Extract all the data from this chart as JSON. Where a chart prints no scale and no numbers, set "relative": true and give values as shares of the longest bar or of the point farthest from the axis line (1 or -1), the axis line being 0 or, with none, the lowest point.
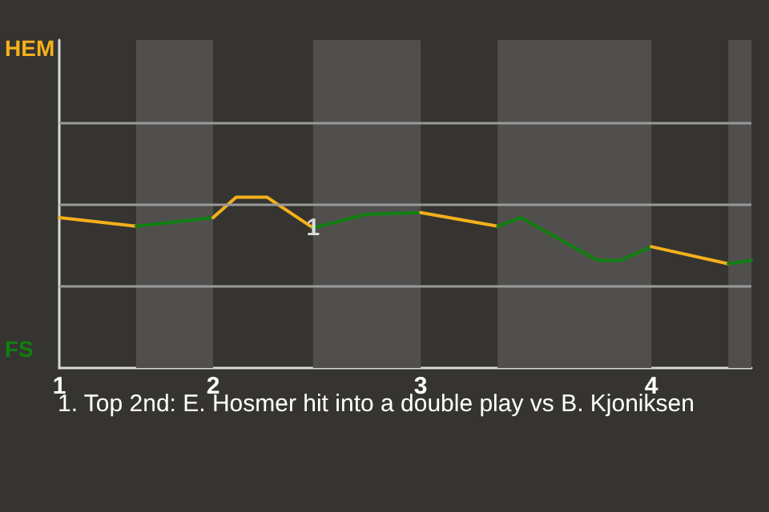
{
  "chart_data": {
    "type": "line",
    "relative": true,
    "categories": [
      "1",
      null,
      null,
      null,
      null,
      null,
      null,
      null,
      null,
      null,
      null,
      null,
      null,
      null,
      null,
      null,
      null,
      null,
      null,
      null,
      "2",
      null,
      null,
      null,
      null,
      null,
      null,
      null,
      null,
      null,
      null,
      null,
      null,
      null,
      null,
      null,
      null,
      null,
      null,
      null,
      null,
      null,
      null,
      null,
      null,
      null,
      null,
      "3",
      null,
      null,
      null,
      null,
      null,
      null,
      null,
      null,
      null,
      null,
      null,
      null,
      null,
      null,
      null,
      null,
      null,
      null,
      null,
      null,
      null,
      null,
      null,
      null,
      null,
      null,
      null,
      null,
      null,
      "4",
      null,
      null,
      null,
      null,
      null,
      null,
      null,
      null,
      null,
      null,
      null,
      null,
      null
    ],
    "series": [
      {
        "color": "#f5b01a",
        "values": [
          0.88,
          null,
          null,
          null,
          null,
          null,
          null,
          null,
          null,
          null,
          0.83,
          null,
          null,
          null,
          null,
          null,
          null,
          null,
          null,
          null,
          null,
          null,
          null,
          null,
          null,
          null,
          null,
          null,
          null,
          null,
          null,
          null,
          null,
          null,
          null,
          null,
          null,
          null,
          null,
          null,
          null,
          null,
          null,
          null,
          null,
          null,
          null,
          null,
          null,
          null,
          null,
          null,
          null,
          null,
          null,
          null,
          null,
          null,
          null,
          null,
          null,
          null,
          null,
          null,
          null,
          null,
          null,
          null,
          null,
          null,
          null,
          null,
          null,
          null,
          null,
          null,
          null,
          null,
          null,
          null,
          null,
          null,
          null,
          null,
          null,
          null,
          null,
          null,
          null,
          null,
          null
        ]
      },
      {
        "color": "#108010",
        "values": [
          null,
          null,
          null,
          null,
          null,
          null,
          null,
          null,
          null,
          null,
          0.83,
          null,
          null,
          null,
          null,
          null,
          null,
          null,
          null,
          null,
          0.88,
          null,
          null,
          null,
          null,
          null,
          null,
          null,
          null,
          null,
          null,
          null,
          null,
          null,
          null,
          null,
          null,
          null,
          null,
          null,
          null,
          null,
          null,
          null,
          null,
          null,
          null,
          null,
          null,
          null,
          null,
          null,
          null,
          null,
          null,
          null,
          null,
          null,
          null,
          null,
          null,
          null,
          null,
          null,
          null,
          null,
          null,
          null,
          null,
          null,
          null,
          null,
          null,
          null,
          null,
          null,
          null,
          null,
          null,
          null,
          null,
          null,
          null,
          null,
          null,
          null,
          null,
          null,
          null,
          null,
          null
        ]
      },
      {
        "color": "#f5b01a",
        "values": [
          null,
          null,
          null,
          null,
          null,
          null,
          null,
          null,
          null,
          null,
          null,
          null,
          null,
          null,
          null,
          null,
          null,
          null,
          null,
          null,
          0.88,
          null,
          null,
          1,
          null,
          null,
          null,
          1,
          null,
          null,
          null,
          null,
          null,
          0.82,
          null,
          null,
          null,
          null,
          null,
          null,
          null,
          null,
          null,
          null,
          null,
          null,
          null,
          null,
          null,
          null,
          null,
          null,
          null,
          null,
          null,
          null,
          null,
          null,
          null,
          null,
          null,
          null,
          null,
          null,
          null,
          null,
          null,
          null,
          null,
          null,
          null,
          null,
          null,
          null,
          null,
          null,
          null,
          null,
          null,
          null,
          null,
          null,
          null,
          null,
          null,
          null,
          null,
          null,
          null,
          null,
          null
        ]
      },
      {
        "color": "#108010",
        "values": [
          null,
          null,
          null,
          null,
          null,
          null,
          null,
          null,
          null,
          null,
          null,
          null,
          null,
          null,
          null,
          null,
          null,
          null,
          null,
          null,
          null,
          null,
          null,
          null,
          null,
          null,
          null,
          null,
          null,
          null,
          null,
          null,
          null,
          0.82,
          null,
          null,
          null,
          null,
          null,
          null,
          0.9,
          null,
          null,
          null,
          null,
          null,
          null,
          0.91,
          null,
          null,
          null,
          null,
          null,
          null,
          null,
          null,
          null,
          null,
          null,
          null,
          null,
          null,
          null,
          null,
          null,
          null,
          null,
          null,
          null,
          null,
          null,
          null,
          null,
          null,
          null,
          null,
          null,
          null,
          null,
          null,
          null,
          null,
          null,
          null,
          null,
          null,
          null,
          null,
          null,
          null,
          null
        ]
      },
      {
        "color": "#f5b01a",
        "values": [
          null,
          null,
          null,
          null,
          null,
          null,
          null,
          null,
          null,
          null,
          null,
          null,
          null,
          null,
          null,
          null,
          null,
          null,
          null,
          null,
          null,
          null,
          null,
          null,
          null,
          null,
          null,
          null,
          null,
          null,
          null,
          null,
          null,
          null,
          null,
          null,
          null,
          null,
          null,
          null,
          null,
          null,
          null,
          null,
          null,
          null,
          null,
          0.91,
          null,
          null,
          null,
          null,
          null,
          null,
          null,
          null,
          null,
          0.83,
          null,
          null,
          null,
          null,
          null,
          null,
          null,
          null,
          null,
          null,
          null,
          null,
          null,
          null,
          null,
          null,
          null,
          null,
          null,
          null,
          null,
          null,
          null,
          null,
          null,
          null,
          null,
          null,
          null,
          null,
          null,
          null,
          null
        ]
      },
      {
        "color": "#108010",
        "values": [
          null,
          null,
          null,
          null,
          null,
          null,
          null,
          null,
          null,
          null,
          null,
          null,
          null,
          null,
          null,
          null,
          null,
          null,
          null,
          null,
          null,
          null,
          null,
          null,
          null,
          null,
          null,
          null,
          null,
          null,
          null,
          null,
          null,
          null,
          null,
          null,
          null,
          null,
          null,
          null,
          null,
          null,
          null,
          null,
          null,
          null,
          null,
          null,
          null,
          null,
          null,
          null,
          null,
          null,
          null,
          null,
          null,
          0.83,
          null,
          null,
          0.88,
          null,
          null,
          null,
          null,
          null,
          null,
          null,
          null,
          null,
          0.63,
          null,
          null,
          0.63,
          null,
          null,
          null,
          0.71,
          null,
          null,
          null,
          null,
          null,
          null,
          null,
          null,
          null,
          null,
          null,
          null,
          null
        ]
      },
      {
        "color": "#f5b01a",
        "values": [
          null,
          null,
          null,
          null,
          null,
          null,
          null,
          null,
          null,
          null,
          null,
          null,
          null,
          null,
          null,
          null,
          null,
          null,
          null,
          null,
          null,
          null,
          null,
          null,
          null,
          null,
          null,
          null,
          null,
          null,
          null,
          null,
          null,
          null,
          null,
          null,
          null,
          null,
          null,
          null,
          null,
          null,
          null,
          null,
          null,
          null,
          null,
          null,
          null,
          null,
          null,
          null,
          null,
          null,
          null,
          null,
          null,
          null,
          null,
          null,
          null,
          null,
          null,
          null,
          null,
          null,
          null,
          null,
          null,
          null,
          null,
          null,
          null,
          null,
          null,
          null,
          null,
          0.71,
          null,
          null,
          null,
          null,
          null,
          null,
          null,
          null,
          null,
          0.61,
          null,
          null,
          null
        ]
      },
      {
        "color": "#108010",
        "values": [
          null,
          null,
          null,
          null,
          null,
          null,
          null,
          null,
          null,
          null,
          null,
          null,
          null,
          null,
          null,
          null,
          null,
          null,
          null,
          null,
          null,
          null,
          null,
          null,
          null,
          null,
          null,
          null,
          null,
          null,
          null,
          null,
          null,
          null,
          null,
          null,
          null,
          null,
          null,
          null,
          null,
          null,
          null,
          null,
          null,
          null,
          null,
          null,
          null,
          null,
          null,
          null,
          null,
          null,
          null,
          null,
          null,
          null,
          null,
          null,
          null,
          null,
          null,
          null,
          null,
          null,
          null,
          null,
          null,
          null,
          null,
          null,
          null,
          null,
          null,
          null,
          null,
          null,
          null,
          null,
          null,
          null,
          null,
          null,
          null,
          null,
          null,
          0.61,
          null,
          null,
          0.63
        ]
      }
    ],
    "annotations": [
      "HEM",
      "FS",
      {
        "text": "1",
        "y": 0.82
      },
      "1. Top 2nd: E. Hosmer hit into a double play vs B. Kjoniksen"
    ],
    "ref_lines": [
      {
        "axis": "y",
        "value": 0.48
      },
      {
        "axis": "y",
        "value": 0.96
      },
      {
        "axis": "y",
        "value": 1.44
      }
    ],
    "marker": "none",
    "line_style": "solid"
  }
}
